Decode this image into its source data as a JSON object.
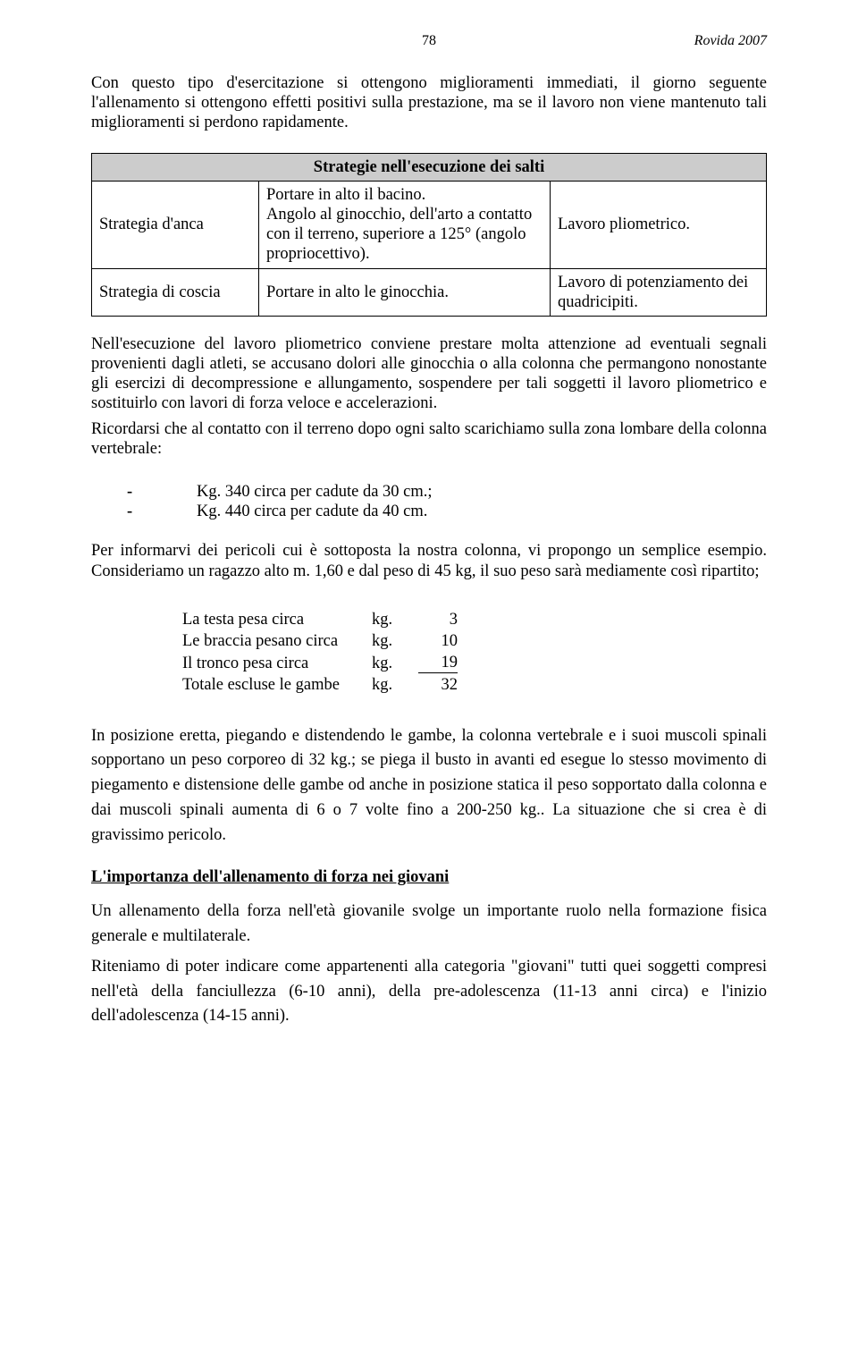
{
  "header": {
    "page_number": "78",
    "right_text": "Rovida 2007"
  },
  "intro_para": "Con questo tipo d'esercitazione si ottengono miglioramenti immediati, il giorno seguente l'allenamento si ottengono effetti positivi sulla prestazione, ma se il lavoro non viene mantenuto tali miglioramenti si perdono rapidamente.",
  "strategie_table": {
    "title": "Strategie nell'esecuzione dei salti",
    "rows": [
      {
        "c1": "Strategia d'anca",
        "c2": "Portare in alto il bacino.\nAngolo al ginocchio, dell'arto a contatto con il terreno, superiore a 125° (angolo propriocettivo).",
        "c3": "Lavoro pliometrico."
      },
      {
        "c1": "Strategia di coscia",
        "c2": "Portare in alto le ginocchia.",
        "c3": "Lavoro di potenziamento dei quadricipiti."
      }
    ]
  },
  "body1": "Nell'esecuzione del lavoro pliometrico conviene prestare molta attenzione ad eventuali segnali provenienti dagli atleti, se accusano dolori alle ginocchia o alla colonna che permangono nonostante gli esercizi di decompressione e allungamento, sospendere per tali soggetti il lavoro pliometrico e sostituirlo con lavori di forza veloce e accelerazioni.",
  "body2": "Ricordarsi che al contatto con il terreno dopo ogni salto scarichiamo sulla zona lombare della colonna vertebrale:",
  "bullets": [
    "Kg. 340 circa per cadute da 30 cm.;",
    "Kg. 440 circa per cadute da 40 cm."
  ],
  "body3": "Per informarvi dei pericoli cui è sottoposta la nostra colonna, vi propongo un semplice esempio. Consideriamo un ragazzo alto m. 1,60 e dal peso di 45 kg, il suo peso sarà mediamente così ripartito;",
  "weight_table": {
    "rows": [
      {
        "label": "La testa pesa circa",
        "unit": "kg.",
        "value": "3"
      },
      {
        "label": "Le braccia pesano circa",
        "unit": "kg.",
        "value": "10"
      },
      {
        "label": "Il tronco pesa circa",
        "unit": "kg.",
        "value": "19"
      }
    ],
    "total": {
      "label": "Totale escluse le gambe",
      "unit": "kg.",
      "value": "32"
    }
  },
  "body4": "In posizione eretta, piegando e distendendo le gambe, la colonna vertebrale e i suoi muscoli spinali sopportano un peso corporeo di 32 kg.; se piega il busto in avanti ed esegue lo stesso movimento di piegamento e distensione delle gambe od anche in posizione statica il peso sopportato dalla colonna e dai muscoli spinali aumenta di 6 o 7 volte fino a 200-250 kg.. La situazione che si crea è di gravissimo pericolo.",
  "section_heading": "L'importanza dell'allenamento di forza nei giovani",
  "body5": "Un allenamento della forza nell'età giovanile svolge un importante ruolo nella formazione fisica generale e multilaterale.",
  "body6": "Riteniamo di poter indicare come appartenenti alla categoria \"giovani\" tutti quei soggetti compresi nell'età della fanciullezza (6-10 anni), della pre-adolescenza (11-13 anni circa) e l'inizio dell'adolescenza (14-15 anni)."
}
